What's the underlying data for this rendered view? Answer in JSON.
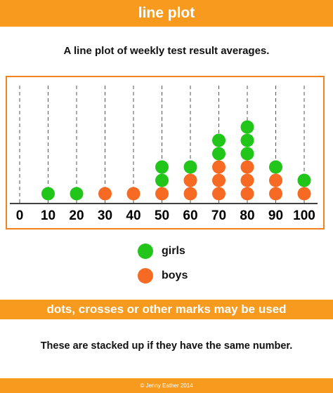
{
  "header": {
    "title": "line plot"
  },
  "subtitle": "A line plot of weekly test result averages.",
  "legend": [
    {
      "label": "girls",
      "color": "#22c51a"
    },
    {
      "label": "boys",
      "color": "#f66a24"
    }
  ],
  "chart_data": {
    "type": "scatter",
    "x_ticks": [
      0,
      10,
      20,
      30,
      40,
      50,
      60,
      70,
      80,
      90,
      100
    ],
    "xlim": [
      0,
      100
    ],
    "grid": "dashed vertical lines",
    "series": [
      {
        "name": "girls",
        "color": "#22c51a",
        "counts": {
          "10": 1,
          "20": 1,
          "50": 2,
          "60": 1,
          "70": 2,
          "80": 3,
          "90": 1,
          "100": 1
        }
      },
      {
        "name": "boys",
        "color": "#f66a24",
        "counts": {
          "30": 1,
          "40": 1,
          "50": 1,
          "60": 2,
          "70": 3,
          "80": 3,
          "90": 2,
          "100": 1
        }
      }
    ],
    "stacking": "boys at bottom, girls above"
  },
  "banner2": "dots, crosses or other marks may be used",
  "note": "These are stacked up if they have the same number.",
  "footer": "© Jenny Eather 2014"
}
